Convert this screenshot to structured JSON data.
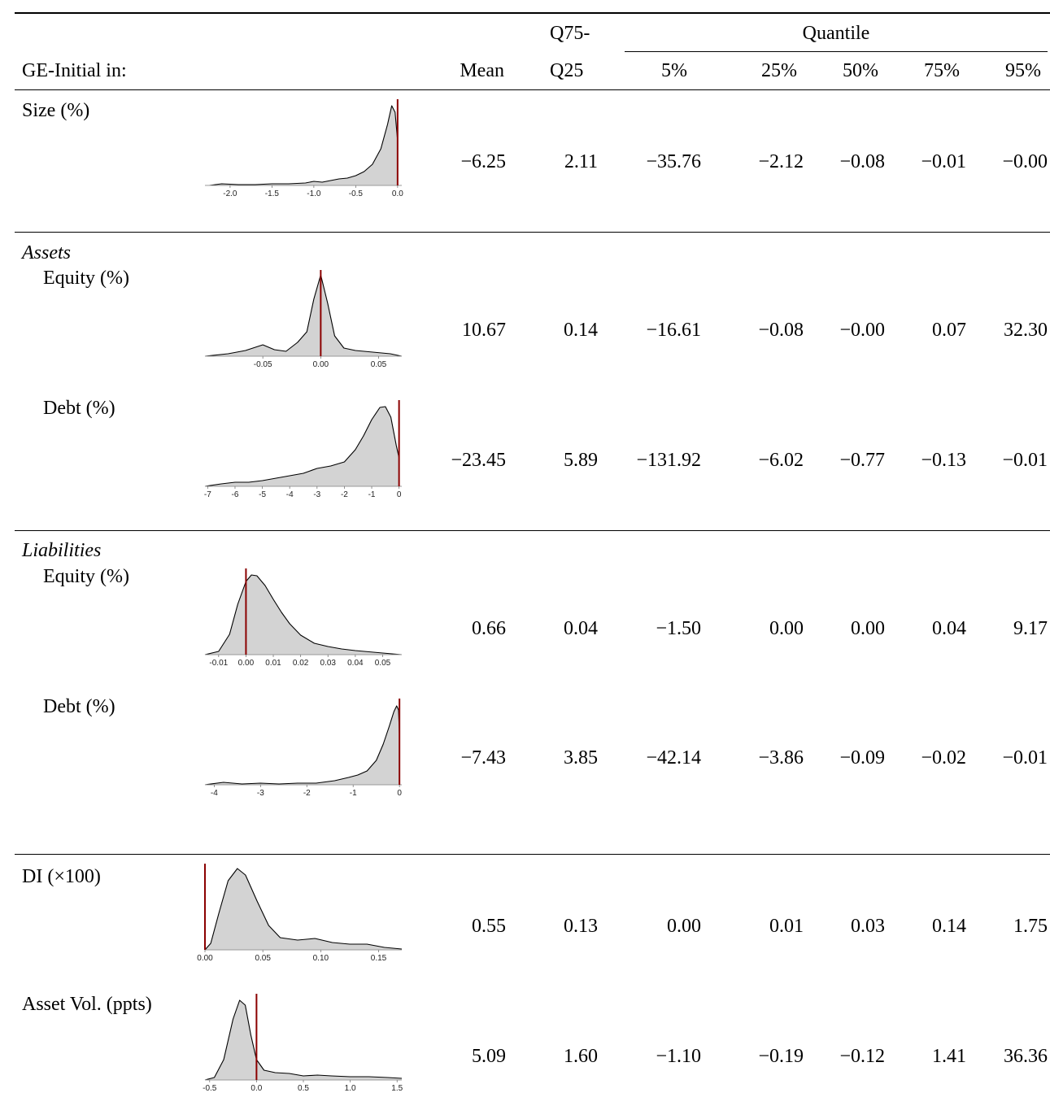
{
  "header": {
    "row_label": "GE-Initial in:",
    "mean": "Mean",
    "iqr_top": "Q75-",
    "iqr_bottom": "Q25",
    "quantile_group": "Quantile",
    "quantiles": [
      "5%",
      "25%",
      "50%",
      "75%",
      "95%"
    ]
  },
  "sections": [
    {
      "title": ""
    },
    {
      "title": "Assets"
    },
    {
      "title": "Liabilities"
    },
    {
      "title": ""
    }
  ],
  "rows": [
    {
      "label": "Size (%)",
      "mean": "−6.25",
      "iqr": "2.11",
      "q": [
        "−35.76",
        "−2.12",
        "−0.08",
        "−0.01",
        "−0.00"
      ]
    },
    {
      "label": "Equity (%)",
      "mean": "10.67",
      "iqr": "0.14",
      "q": [
        "−16.61",
        "−0.08",
        "−0.00",
        "0.07",
        "32.30"
      ]
    },
    {
      "label": "Debt (%)",
      "mean": "−23.45",
      "iqr": "5.89",
      "q": [
        "−131.92",
        "−6.02",
        "−0.77",
        "−0.13",
        "−0.01"
      ]
    },
    {
      "label": "Equity (%)",
      "mean": "0.66",
      "iqr": "0.04",
      "q": [
        "−1.50",
        "0.00",
        "0.00",
        "0.04",
        "9.17"
      ]
    },
    {
      "label": "Debt (%)",
      "mean": "−7.43",
      "iqr": "3.85",
      "q": [
        "−42.14",
        "−3.86",
        "−0.09",
        "−0.02",
        "−0.01"
      ]
    },
    {
      "label": "DI (×100)",
      "mean": "0.55",
      "iqr": "0.13",
      "q": [
        "0.00",
        "0.01",
        "0.03",
        "0.14",
        "1.75"
      ]
    },
    {
      "label": "Asset Vol. (ppts)",
      "mean": "5.09",
      "iqr": "1.60",
      "q": [
        "−1.10",
        "−0.19",
        "−0.12",
        "1.41",
        "36.36"
      ]
    }
  ],
  "chart_data": [
    {
      "type": "area",
      "xlim": [
        -2.3,
        0.05
      ],
      "ticks": [
        "-2.0",
        "-1.5",
        "-1.0",
        "-0.5",
        "0.0"
      ],
      "tick_values": [
        -2.0,
        -1.5,
        -1.0,
        -0.5,
        0.0
      ],
      "marker_x": 0.0,
      "x": [
        -2.25,
        -2.1,
        -1.9,
        -1.7,
        -1.5,
        -1.3,
        -1.1,
        -1.0,
        -0.9,
        -0.8,
        -0.7,
        -0.6,
        -0.5,
        -0.4,
        -0.3,
        -0.2,
        -0.12,
        -0.07,
        -0.03,
        0.0
      ],
      "y": [
        0.0,
        0.02,
        0.01,
        0.01,
        0.02,
        0.02,
        0.03,
        0.05,
        0.04,
        0.06,
        0.08,
        0.09,
        0.12,
        0.17,
        0.26,
        0.45,
        0.75,
        0.98,
        0.9,
        0.55
      ]
    },
    {
      "type": "area",
      "xlim": [
        -0.1,
        0.07
      ],
      "ticks": [
        "-0.05",
        "0.00",
        "0.05"
      ],
      "tick_values": [
        -0.05,
        0.0,
        0.05
      ],
      "marker_x": 0.0,
      "x": [
        -0.1,
        -0.08,
        -0.065,
        -0.05,
        -0.04,
        -0.03,
        -0.02,
        -0.012,
        -0.006,
        0.0,
        0.006,
        0.012,
        0.02,
        0.03,
        0.045,
        0.06,
        0.07
      ],
      "y": [
        0.0,
        0.03,
        0.07,
        0.14,
        0.08,
        0.06,
        0.17,
        0.3,
        0.7,
        1.0,
        0.65,
        0.25,
        0.1,
        0.07,
        0.05,
        0.03,
        0.0
      ]
    },
    {
      "type": "area",
      "xlim": [
        -7.1,
        0.1
      ],
      "ticks": [
        "-7",
        "-6",
        "-5",
        "-4",
        "-3",
        "-2",
        "-1",
        "0"
      ],
      "tick_values": [
        -7,
        -6,
        -5,
        -4,
        -3,
        -2,
        -1,
        0
      ],
      "marker_x": 0.0,
      "x": [
        -7.1,
        -6.5,
        -6.0,
        -5.5,
        -5.0,
        -4.5,
        -4.0,
        -3.5,
        -3.0,
        -2.5,
        -2.0,
        -1.6,
        -1.3,
        -1.0,
        -0.7,
        -0.5,
        -0.3,
        -0.1,
        0.0
      ],
      "y": [
        0.0,
        0.03,
        0.05,
        0.05,
        0.07,
        0.1,
        0.13,
        0.16,
        0.22,
        0.25,
        0.3,
        0.45,
        0.62,
        0.82,
        0.97,
        0.98,
        0.85,
        0.5,
        0.35
      ]
    },
    {
      "type": "area",
      "xlim": [
        -0.015,
        0.057
      ],
      "ticks": [
        "-0.01",
        "0.00",
        "0.01",
        "0.02",
        "0.03",
        "0.04",
        "0.05"
      ],
      "tick_values": [
        -0.01,
        0.0,
        0.01,
        0.02,
        0.03,
        0.04,
        0.05
      ],
      "marker_x": 0.0,
      "x": [
        -0.015,
        -0.01,
        -0.006,
        -0.003,
        0.0,
        0.002,
        0.004,
        0.007,
        0.01,
        0.013,
        0.016,
        0.02,
        0.025,
        0.03,
        0.035,
        0.04,
        0.05,
        0.057
      ],
      "y": [
        0.0,
        0.04,
        0.25,
        0.62,
        0.9,
        0.98,
        0.97,
        0.85,
        0.68,
        0.52,
        0.38,
        0.24,
        0.14,
        0.1,
        0.07,
        0.05,
        0.02,
        0.0
      ]
    },
    {
      "type": "area",
      "xlim": [
        -4.2,
        0.05
      ],
      "ticks": [
        "-4",
        "-3",
        "-2",
        "-1",
        "0"
      ],
      "tick_values": [
        -4,
        -3,
        -2,
        -1,
        0
      ],
      "marker_x": 0.0,
      "x": [
        -4.2,
        -3.8,
        -3.4,
        -3.0,
        -2.6,
        -2.2,
        -1.8,
        -1.4,
        -1.1,
        -0.9,
        -0.7,
        -0.5,
        -0.35,
        -0.22,
        -0.12,
        -0.06,
        -0.02,
        0.0
      ],
      "y": [
        0.0,
        0.03,
        0.01,
        0.02,
        0.01,
        0.02,
        0.02,
        0.05,
        0.09,
        0.12,
        0.17,
        0.3,
        0.5,
        0.72,
        0.9,
        0.97,
        0.92,
        0.6
      ]
    },
    {
      "type": "area",
      "xlim": [
        0.0,
        0.17
      ],
      "ticks": [
        "0.00",
        "0.05",
        "0.10",
        "0.15"
      ],
      "tick_values": [
        0.0,
        0.05,
        0.1,
        0.15
      ],
      "marker_x": 0.0,
      "x": [
        0.0,
        0.005,
        0.012,
        0.02,
        0.028,
        0.035,
        0.045,
        0.055,
        0.065,
        0.08,
        0.095,
        0.11,
        0.125,
        0.14,
        0.155,
        0.17
      ],
      "y": [
        0.0,
        0.08,
        0.45,
        0.85,
        1.0,
        0.92,
        0.6,
        0.3,
        0.15,
        0.12,
        0.14,
        0.09,
        0.07,
        0.07,
        0.03,
        0.01
      ]
    },
    {
      "type": "area",
      "xlim": [
        -0.55,
        1.55
      ],
      "ticks": [
        "-0.5",
        "0.0",
        "0.5",
        "1.0",
        "1.5"
      ],
      "tick_values": [
        -0.5,
        0.0,
        0.5,
        1.0,
        1.5
      ],
      "marker_x": 0.0,
      "x": [
        -0.55,
        -0.45,
        -0.35,
        -0.25,
        -0.18,
        -0.12,
        -0.06,
        0.0,
        0.08,
        0.2,
        0.35,
        0.5,
        0.65,
        0.8,
        1.0,
        1.2,
        1.4,
        1.55
      ],
      "y": [
        0.0,
        0.03,
        0.25,
        0.75,
        0.98,
        0.92,
        0.55,
        0.25,
        0.12,
        0.09,
        0.08,
        0.05,
        0.06,
        0.05,
        0.04,
        0.04,
        0.03,
        0.02
      ]
    }
  ]
}
